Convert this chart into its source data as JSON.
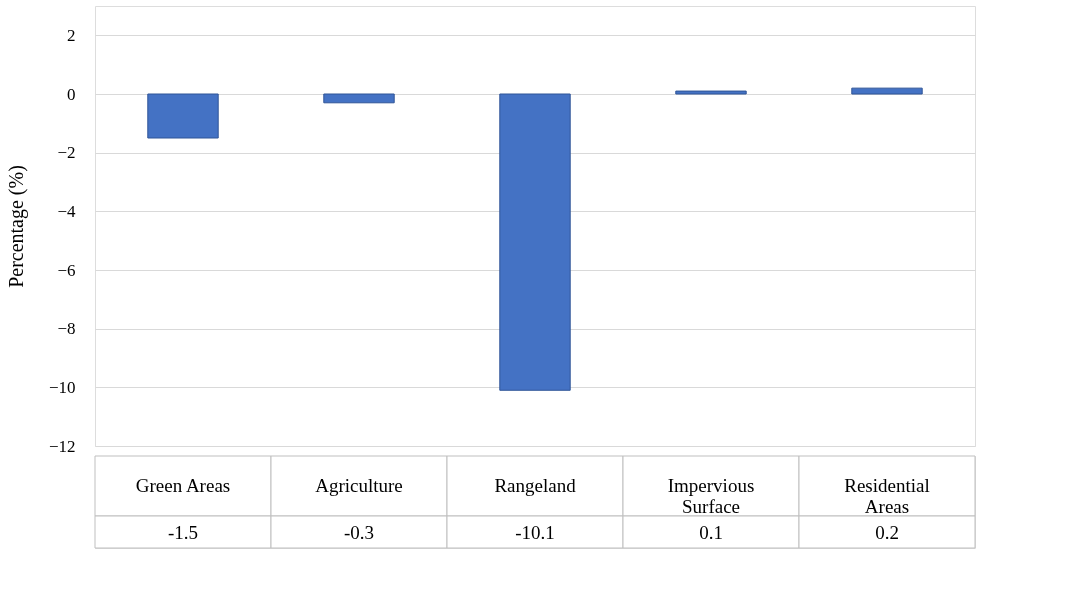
{
  "chart_data": {
    "type": "bar",
    "ylabel": "Percentage (%)",
    "categories": [
      "Green Areas",
      "Agriculture",
      "Rangeland",
      "Impervious Surface",
      "Residential Areas"
    ],
    "values": [
      -1.5,
      -0.3,
      -10.1,
      0.1,
      0.2
    ],
    "color": "#4472c4",
    "ylim": [
      -12,
      3
    ],
    "yticks": [
      -12,
      -10,
      -8,
      -6,
      -4,
      -2,
      0,
      2
    ],
    "grid": "y",
    "data_labels": true,
    "tick_labels": "y"
  }
}
